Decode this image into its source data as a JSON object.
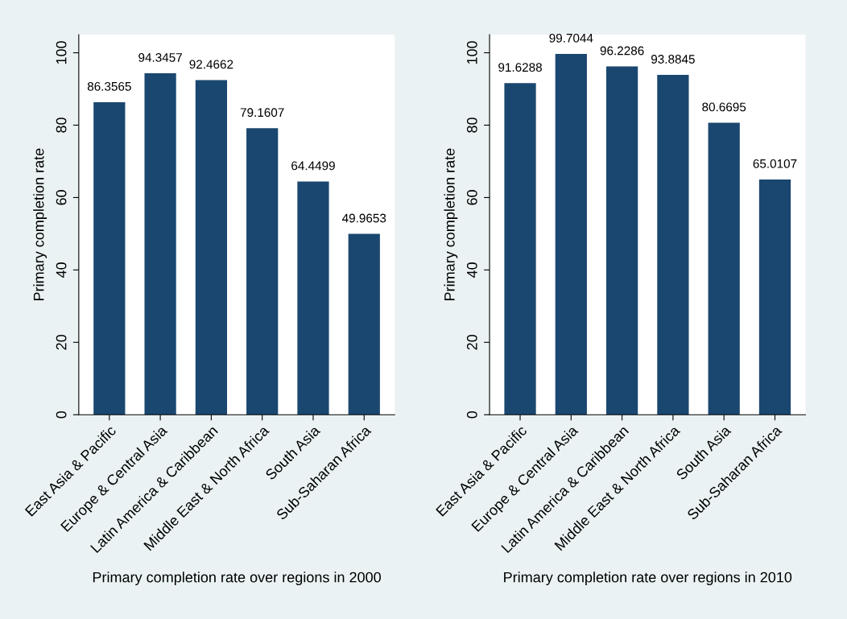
{
  "chart_data": [
    {
      "type": "bar",
      "xlabel": "Primary completion rate over regions in 2000",
      "ylabel": "Primary completion rate",
      "categories": [
        "East Asia & Pacific",
        "Europe & Central Asia",
        "Latin America & Caribbean",
        "Middle East & North Africa",
        "South Asia",
        "Sub-Saharan Africa"
      ],
      "values": [
        86.3565,
        94.3457,
        92.4662,
        79.1607,
        64.4499,
        49.9653
      ],
      "color": "#1a476f",
      "ylim": [
        0,
        105
      ],
      "yticks": [
        0,
        20,
        40,
        60,
        80,
        100
      ],
      "data_labels": true
    },
    {
      "type": "bar",
      "xlabel": "Primary completion rate over regions in 2010",
      "ylabel": "Primary completion rate",
      "categories": [
        "East Asia & Pacific",
        "Europe & Central Asia",
        "Latin America & Caribbean",
        "Middle East & North Africa",
        "South Asia",
        "Sub-Saharan Africa"
      ],
      "values": [
        91.6288,
        99.7044,
        96.2286,
        93.8845,
        80.6695,
        65.0107
      ],
      "color": "#1a476f",
      "ylim": [
        0,
        105
      ],
      "yticks": [
        0,
        20,
        40,
        60,
        80,
        100
      ],
      "data_labels": true
    }
  ]
}
